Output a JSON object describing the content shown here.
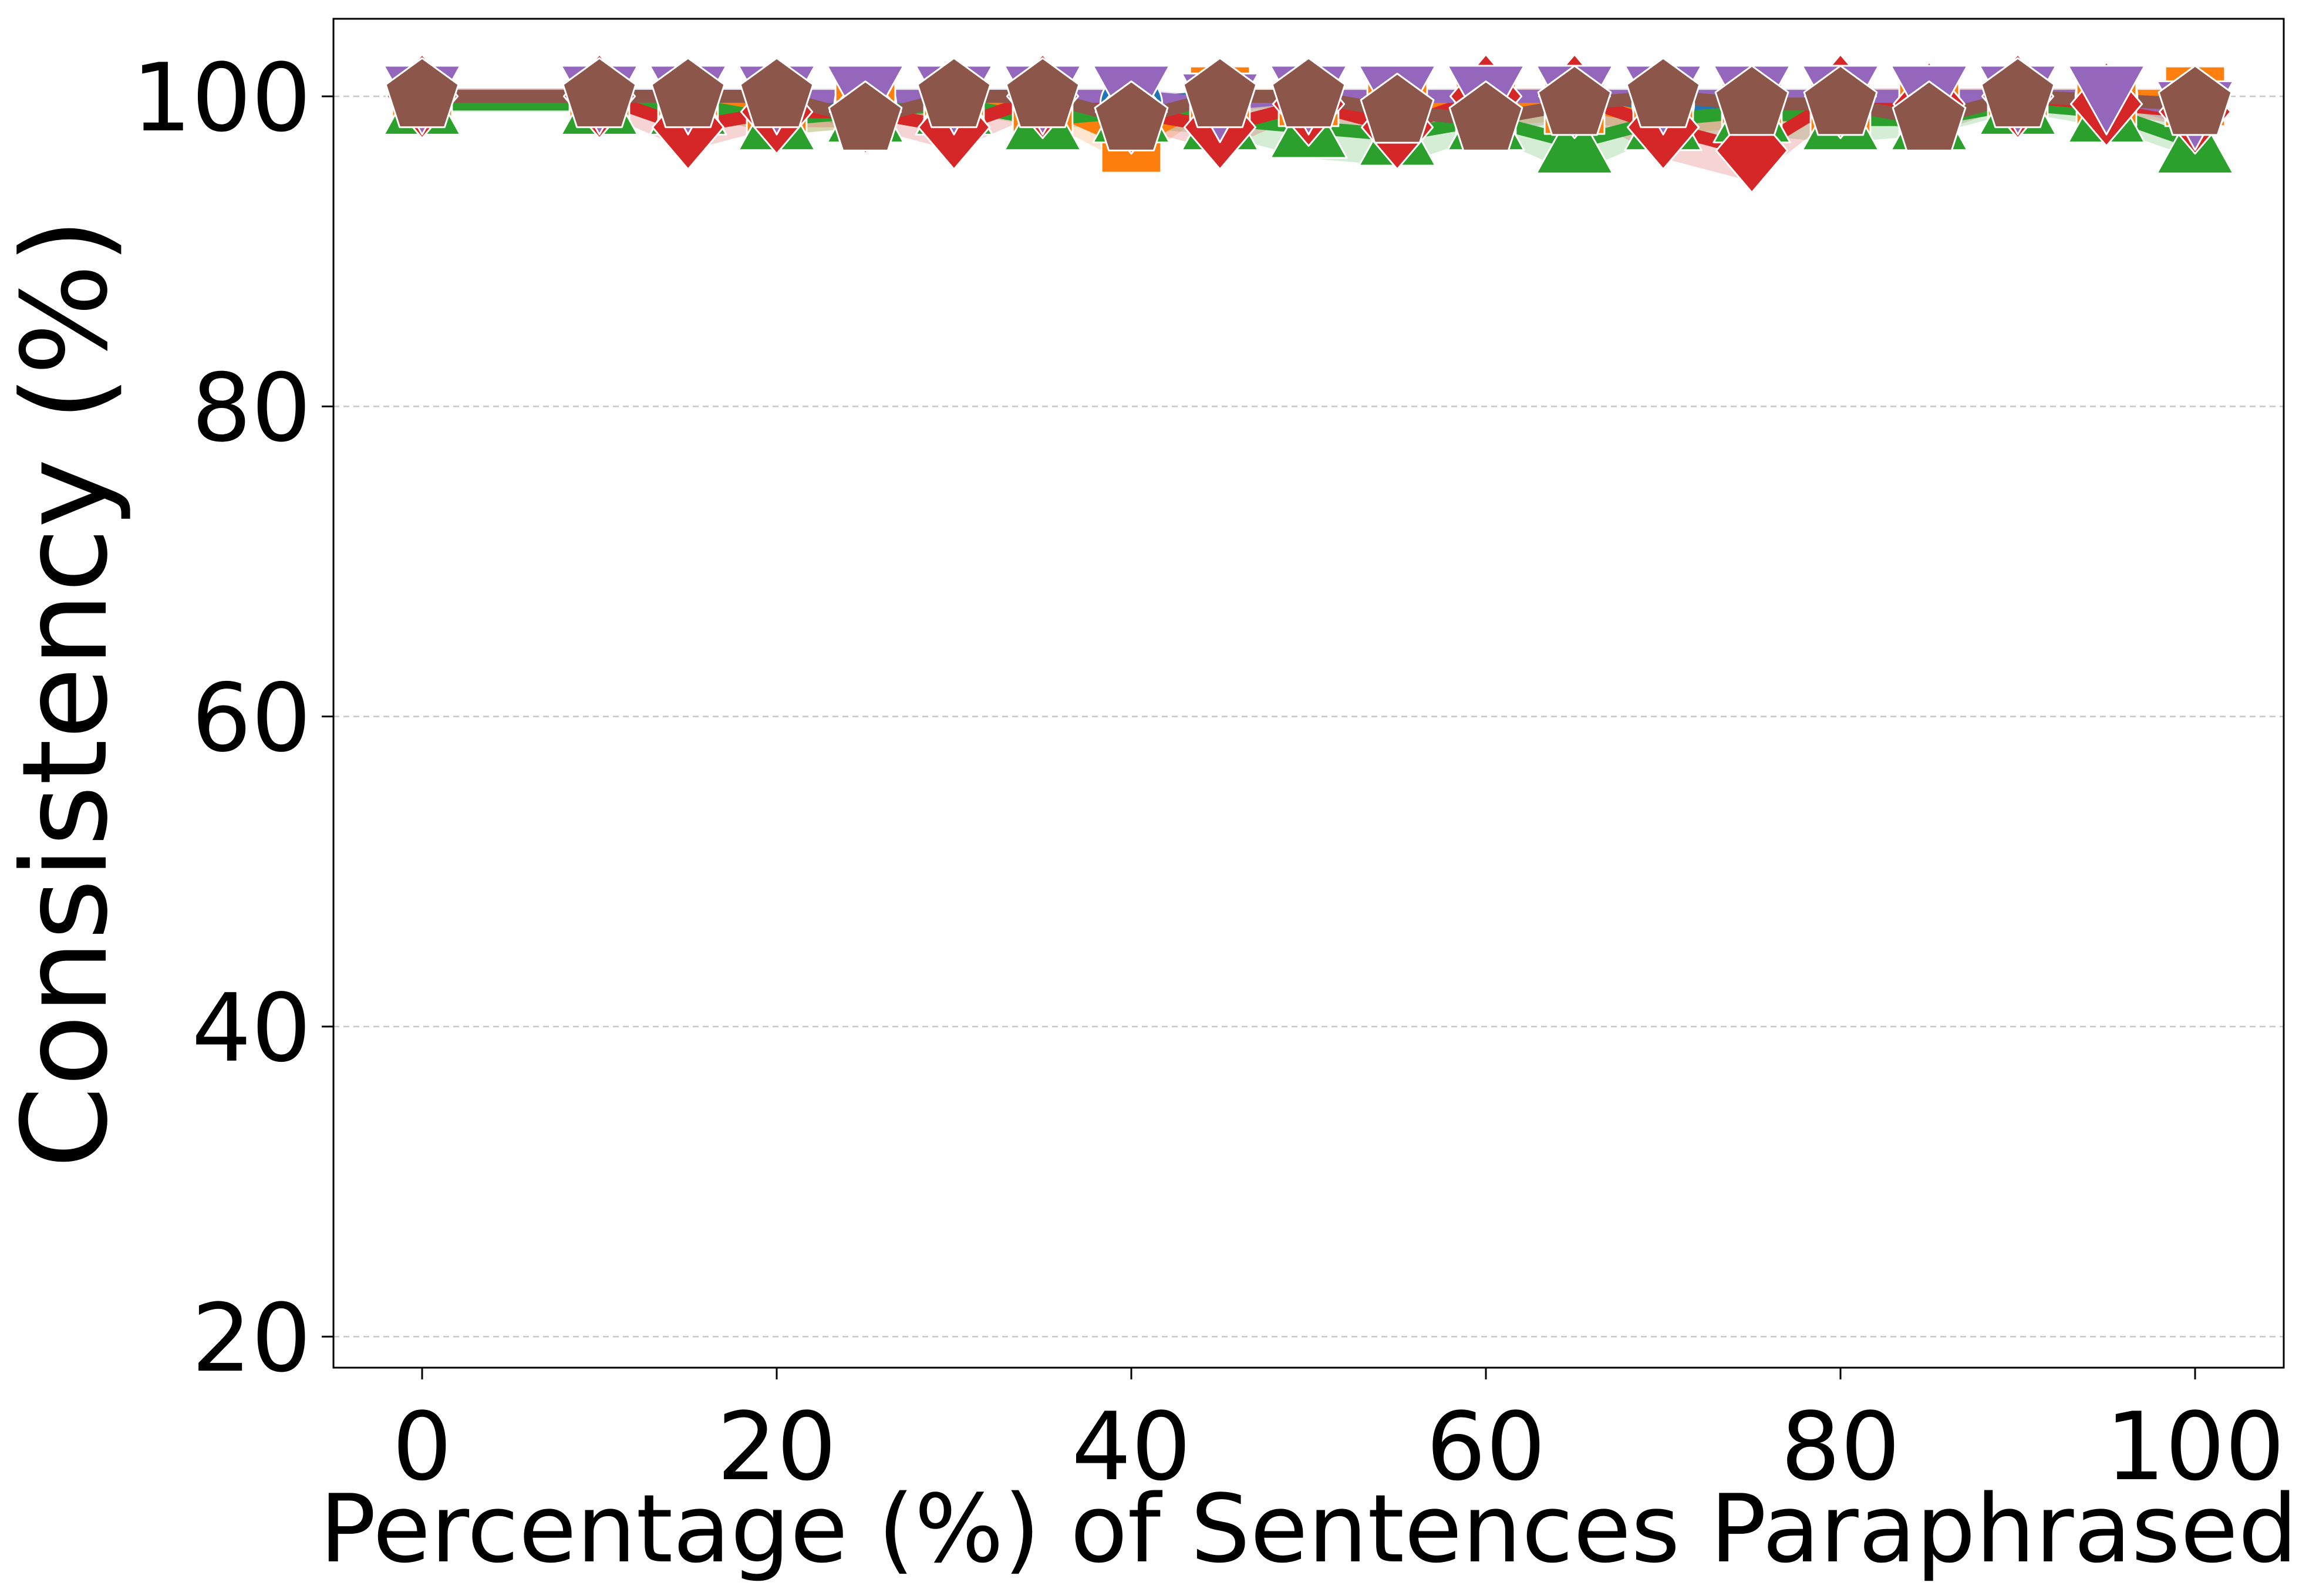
{
  "chart_data": {
    "type": "line",
    "title": "",
    "xlabel": "Percentage (%) of Sentences Paraphrased",
    "ylabel": "Consistency (%)",
    "xlim": [
      -5,
      105
    ],
    "ylim": [
      18,
      105
    ],
    "xticks": [
      0,
      20,
      40,
      60,
      80,
      100
    ],
    "yticks": [
      20,
      40,
      60,
      80,
      100
    ],
    "grid": "y-dashed",
    "legend": "none",
    "x": [
      0,
      10,
      15,
      20,
      25,
      30,
      35,
      40,
      45,
      50,
      55,
      60,
      65,
      70,
      75,
      80,
      85,
      90,
      95,
      100
    ],
    "series": [
      {
        "color": "#1f77b4",
        "marker": "circle",
        "values": [
          100,
          100,
          100,
          100,
          99.5,
          100,
          100,
          99.5,
          100,
          100,
          99.5,
          99.5,
          99.5,
          99.5,
          99.5,
          99.5,
          99.5,
          100,
          100,
          99.5
        ],
        "band_low": [
          99.5,
          99.5,
          99.5,
          99.5,
          99,
          99.5,
          99.5,
          99,
          99.5,
          99.5,
          99,
          99,
          99,
          99,
          99,
          99,
          99,
          99.5,
          99.5,
          99
        ],
        "band_high": [
          100,
          100,
          100,
          100,
          100,
          100,
          100,
          100,
          100,
          100,
          100,
          100,
          100,
          100,
          100,
          100,
          100,
          100,
          100,
          100
        ]
      },
      {
        "color": "#ff7f0e",
        "marker": "square",
        "values": [
          100,
          100,
          99.5,
          99,
          99,
          99.5,
          99.5,
          97,
          100,
          100,
          99.5,
          99,
          99.5,
          98.5,
          99,
          99.5,
          99,
          100,
          100,
          100
        ],
        "band_low": [
          99.5,
          99.5,
          99,
          97.5,
          98,
          99,
          98.5,
          95.5,
          99.5,
          99.5,
          99,
          98,
          98.5,
          97.5,
          98,
          99,
          98.5,
          99.5,
          99.5,
          99.5
        ],
        "band_high": [
          100.5,
          100.5,
          100,
          100,
          100,
          100,
          100,
          99,
          100.5,
          100.5,
          100,
          100,
          100,
          99.5,
          100,
          100,
          99.5,
          100.5,
          100.5,
          100.5
        ]
      },
      {
        "color": "#2ca02c",
        "marker": "triangle-up",
        "values": [
          99.5,
          99.5,
          99.5,
          98.5,
          99,
          99.5,
          98.5,
          99,
          98.5,
          98,
          97.5,
          98.5,
          97,
          98.5,
          99,
          98.5,
          98.5,
          99.5,
          99,
          97
        ],
        "band_low": [
          99,
          99,
          99,
          97.5,
          98,
          99,
          98,
          98,
          97.5,
          96,
          95.5,
          97.5,
          95,
          97.5,
          97.5,
          97,
          97.5,
          99,
          98,
          96
        ],
        "band_high": [
          100,
          100,
          100,
          99.5,
          100,
          100,
          99.5,
          100,
          99.5,
          99.5,
          99.5,
          99.5,
          99,
          99.5,
          100,
          99.5,
          99.5,
          100,
          100,
          98
        ]
      },
      {
        "color": "#d62728",
        "marker": "diamond",
        "values": [
          100,
          100,
          98,
          99,
          99,
          98,
          100,
          99,
          98,
          99.5,
          98,
          100,
          100,
          98,
          96.5,
          100,
          99.5,
          100,
          99.5,
          99
        ],
        "band_low": [
          99.5,
          99,
          96.5,
          98,
          98,
          96.5,
          99,
          98,
          96.5,
          99,
          97,
          99,
          99,
          96,
          94.5,
          99,
          98.5,
          99.5,
          99,
          98
        ],
        "band_high": [
          100.5,
          100.5,
          99.5,
          100,
          100,
          99.5,
          100.5,
          100,
          99.5,
          100,
          99,
          100.5,
          100.5,
          99.5,
          98.5,
          100.5,
          100.5,
          100.5,
          100,
          100
        ]
      },
      {
        "color": "#9467bd",
        "marker": "triangle-down",
        "values": [
          100,
          100,
          100,
          100,
          100,
          100,
          100,
          100,
          99.5,
          100,
          100,
          100,
          100,
          100,
          100,
          100,
          100,
          100,
          100,
          99
        ],
        "band_low": [
          99.5,
          99.5,
          99.5,
          99.5,
          99.5,
          99.5,
          99.5,
          99.5,
          99,
          99.5,
          99.5,
          99.5,
          99.5,
          99.5,
          99.5,
          99.5,
          99.5,
          99.5,
          99.5,
          98
        ],
        "band_high": [
          100.5,
          100.5,
          100.5,
          100.5,
          100.5,
          100.5,
          100.5,
          100.5,
          100,
          100.5,
          100.5,
          100.5,
          100.5,
          100.5,
          100.5,
          100.5,
          100.5,
          100.5,
          100.5,
          100
        ]
      },
      {
        "color": "#8c564b",
        "marker": "pentagon",
        "values": [
          100,
          100,
          100,
          100,
          98.5,
          100,
          100,
          98.5,
          100,
          100,
          99,
          98.5,
          99.5,
          100,
          99.5,
          99.5,
          98.5,
          100,
          null,
          99.5
        ],
        "band_low": [
          99.5,
          99.5,
          99.5,
          99.5,
          97.5,
          99.5,
          99.5,
          97.5,
          99.5,
          99.5,
          98,
          97.5,
          98.5,
          99.5,
          98.5,
          99,
          97.5,
          99.5,
          null,
          99
        ],
        "band_high": [
          100,
          100,
          100,
          100,
          99.5,
          100,
          100,
          99.5,
          100,
          100,
          100,
          99.5,
          100,
          100,
          100,
          100,
          99.5,
          100,
          null,
          100
        ]
      }
    ]
  }
}
